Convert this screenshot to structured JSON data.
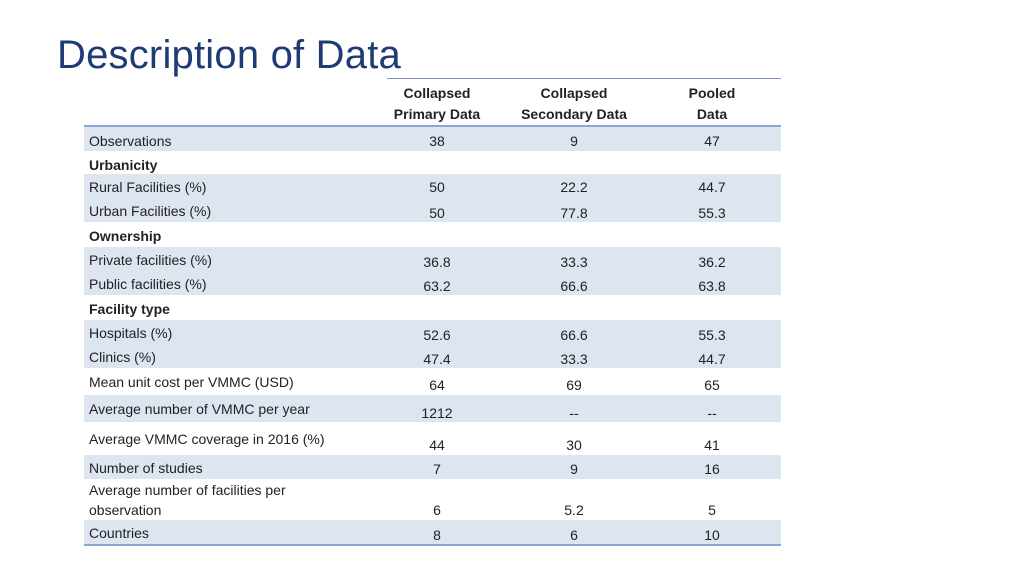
{
  "title": "Description of Data",
  "columns": [
    {
      "line1": "Collapsed",
      "line2": "Primary Data"
    },
    {
      "line1": "Collapsed",
      "line2": "Secondary Data"
    },
    {
      "line1": "Pooled",
      "line2": "Data"
    }
  ],
  "rows": [
    {
      "label": "Observations",
      "values": [
        "38",
        "9",
        "47"
      ]
    },
    {
      "label": "Urbanicity"
    },
    {
      "label": "Rural Facilities (%)",
      "values": [
        "50",
        "22.2",
        "44.7"
      ]
    },
    {
      "label": "Urban Facilities (%)",
      "values": [
        "50",
        "77.8",
        "55.3"
      ]
    },
    {
      "label": "Ownership"
    },
    {
      "label": "Private facilities (%)",
      "values": [
        "36.8",
        "33.3",
        "36.2"
      ]
    },
    {
      "label": "Public facilities (%)",
      "values": [
        "63.2",
        "66.6",
        "63.8"
      ]
    },
    {
      "label": "Facility type"
    },
    {
      "label": "Hospitals (%)",
      "values": [
        "52.6",
        "66.6",
        "55.3"
      ]
    },
    {
      "label": "Clinics (%)",
      "values": [
        "47.4",
        "33.3",
        "44.7"
      ]
    },
    {
      "label": "Mean unit cost per VMMC (USD)",
      "values": [
        "64",
        "69",
        "65"
      ]
    },
    {
      "label": "Average number of VMMC per year",
      "values": [
        "1212",
        "--",
        "--"
      ]
    },
    {
      "label": "Average VMMC coverage in 2016 (%)",
      "values": [
        "44",
        "30",
        "41"
      ]
    },
    {
      "label": "Number of studies",
      "values": [
        "7",
        "9",
        "16"
      ]
    },
    {
      "label": "Average number of facilities per",
      "label2": "observation",
      "values": [
        "6",
        "5.2",
        "5"
      ]
    },
    {
      "label": "Countries",
      "values": [
        "8",
        "6",
        "10"
      ]
    }
  ]
}
